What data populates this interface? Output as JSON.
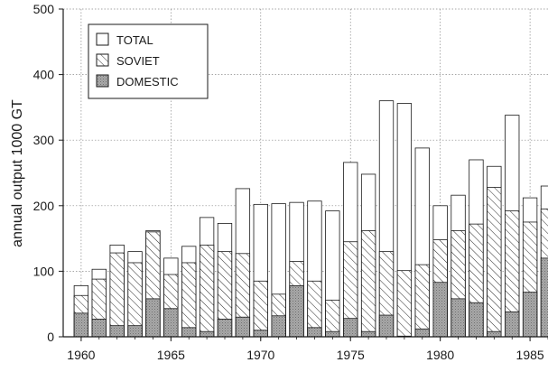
{
  "chart_data": {
    "type": "bar",
    "stacked": false,
    "overlaid": true,
    "title": "",
    "xlabel": "",
    "ylabel": "annual output 1000 GT",
    "ylim": [
      0,
      500
    ],
    "xlim": [
      1959,
      1986
    ],
    "y_ticks": [
      "0",
      "100",
      "200",
      "300",
      "400",
      "500"
    ],
    "x_ticks": [
      "1960",
      "1965",
      "1970",
      "1975",
      "1980",
      "1985"
    ],
    "grid": true,
    "legend_position": "top-left",
    "legend": [
      "TOTAL",
      "SOVIET",
      "DOMESTIC"
    ],
    "x": [
      1960,
      1961,
      1962,
      1963,
      1964,
      1965,
      1966,
      1967,
      1968,
      1969,
      1970,
      1971,
      1972,
      1973,
      1974,
      1975,
      1976,
      1977,
      1978,
      1979,
      1980,
      1981,
      1982,
      1983,
      1984,
      1985,
      1986
    ],
    "series": [
      {
        "name": "TOTAL",
        "pattern": "open",
        "values": [
          78,
          103,
          140,
          130,
          162,
          120,
          138,
          182,
          173,
          226,
          202,
          203,
          205,
          207,
          192,
          266,
          248,
          360,
          356,
          288,
          200,
          216,
          270,
          260,
          338,
          212,
          230
        ]
      },
      {
        "name": "SOVIET",
        "pattern": "hatched",
        "values": [
          63,
          88,
          128,
          113,
          160,
          95,
          113,
          140,
          130,
          127,
          85,
          65,
          115,
          85,
          56,
          145,
          162,
          130,
          101,
          110,
          148,
          162,
          172,
          228,
          192,
          175,
          195
        ]
      },
      {
        "name": "DOMESTIC",
        "pattern": "stippled",
        "values": [
          36,
          27,
          17,
          17,
          58,
          43,
          14,
          8,
          27,
          30,
          10,
          32,
          78,
          14,
          8,
          28,
          8,
          33,
          1,
          12,
          83,
          58,
          52,
          8,
          38,
          68,
          120
        ]
      }
    ],
    "colors": {
      "background": "#ffffff",
      "ink": "#1a1a1a",
      "grid": "#8a8a8a",
      "stipple": "#9c9c9c"
    }
  }
}
